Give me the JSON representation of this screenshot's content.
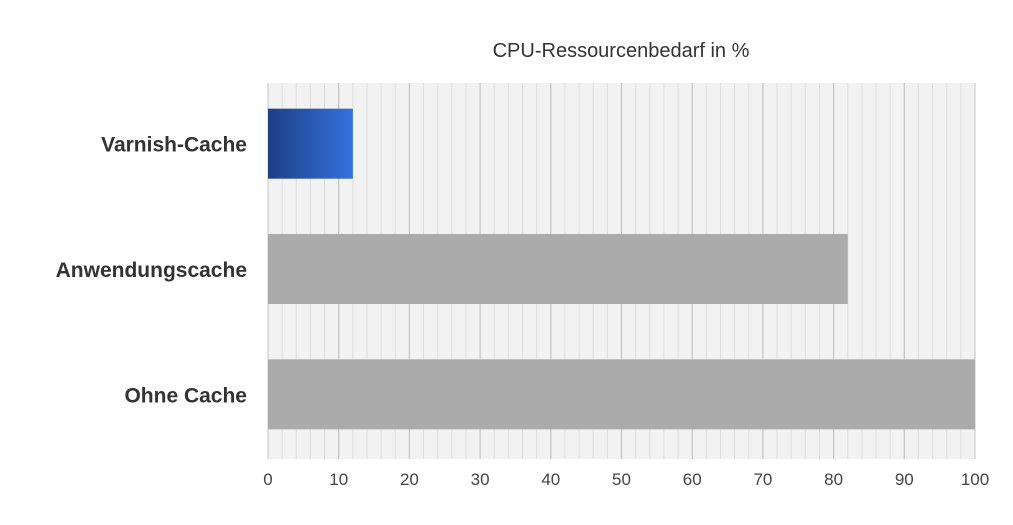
{
  "chart_data": {
    "type": "bar",
    "orientation": "horizontal",
    "title": "CPU-Ressourcenbedarf in %",
    "categories": [
      "Varnish-Cache",
      "Anwendungscache",
      "Ohne Cache"
    ],
    "values": [
      12,
      82,
      100
    ],
    "xlim": [
      0,
      100
    ],
    "xticks": [
      "0",
      "10",
      "20",
      "30",
      "40",
      "50",
      "60",
      "70",
      "80",
      "90",
      "100"
    ],
    "grid": true,
    "colors": [
      "#2f66c9",
      "#ababab",
      "#ababab"
    ]
  }
}
